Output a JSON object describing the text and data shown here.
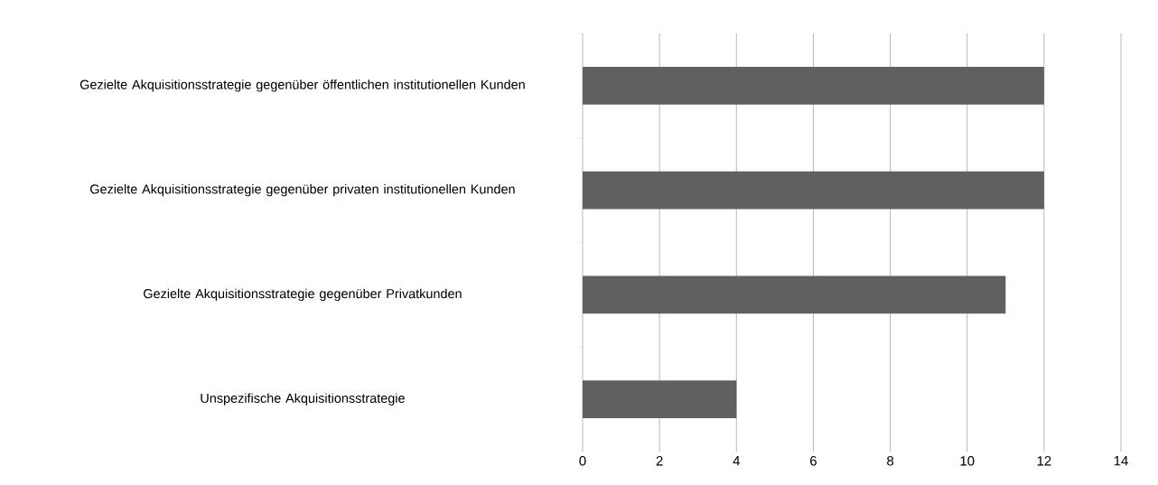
{
  "chart_data": {
    "type": "bar",
    "orientation": "horizontal",
    "categories": [
      "Gezielte Akquisitionsstrategie gegenüber öffentlichen institutionellen Kunden",
      "Gezielte Akquisitionsstrategie gegenüber privaten institutionellen Kunden",
      "Gezielte Akquisitionsstrategie gegenüber Privatkunden",
      "Unspezifische Akquisitionsstrategie"
    ],
    "values": [
      12,
      12,
      11,
      4
    ],
    "color": "#606060",
    "xlim": [
      0,
      14
    ],
    "xticks": [
      0,
      2,
      4,
      6,
      8,
      10,
      12,
      14
    ],
    "grid": "x"
  }
}
